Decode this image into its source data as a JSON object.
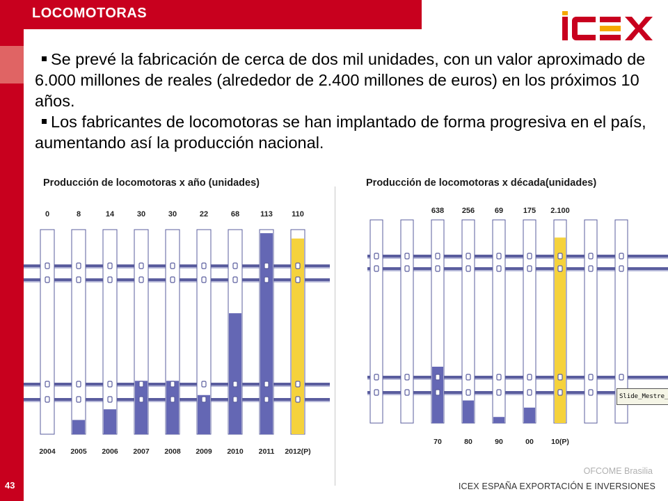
{
  "slide": {
    "section_title": "LOCOMOTORAS",
    "brand": "ICEX",
    "bullets": [
      "Se prevé la fabricación de cerca de dos mil unidades, con un valor aproximado de 6.000 millones de reales (alrededor de 2.400 millones de euros) en los próximos 10 años.",
      "Los fabricantes de locomotoras se han implantado de forma progresiva en el país, aumentando así la producción nacional."
    ],
    "footer": {
      "office": "OFCOME Brasilia",
      "organization": "ICEX ESPAÑA EXPORTACIÓN  E INVERSIONES"
    },
    "page_number": "43",
    "tooltip_text": "Slide_Mestre_Trilhos.j",
    "colors": {
      "brand_red": "#c8001e",
      "bar_actual": "#6467b4",
      "bar_forecast": "#f5d23c",
      "rail": "#5a5d9e"
    }
  },
  "chart_data": [
    {
      "type": "bar",
      "title": "Producción de locomotoras x año (unidades)",
      "categories": [
        "2004",
        "2005",
        "2006",
        "2007",
        "2008",
        "2009",
        "2010",
        "2011",
        "2012(P)"
      ],
      "values": [
        0,
        8,
        14,
        30,
        30,
        22,
        68,
        113,
        110
      ],
      "value_labels": [
        "0",
        "8",
        "14",
        "30",
        "30",
        "22",
        "68",
        "113",
        "110"
      ],
      "forecast_index": 8,
      "ylim": [
        0,
        115
      ],
      "grid": false
    },
    {
      "type": "bar",
      "title": "Producción de locomotoras x década(unidades)",
      "categories": [
        "70",
        "80",
        "90",
        "00",
        "10(P)"
      ],
      "values": [
        638,
        256,
        69,
        175,
        2100
      ],
      "value_labels": [
        "638",
        "256",
        "69",
        "175",
        "2.100"
      ],
      "forecast_index": 4,
      "ylim": [
        0,
        2300
      ],
      "grid": false
    }
  ]
}
